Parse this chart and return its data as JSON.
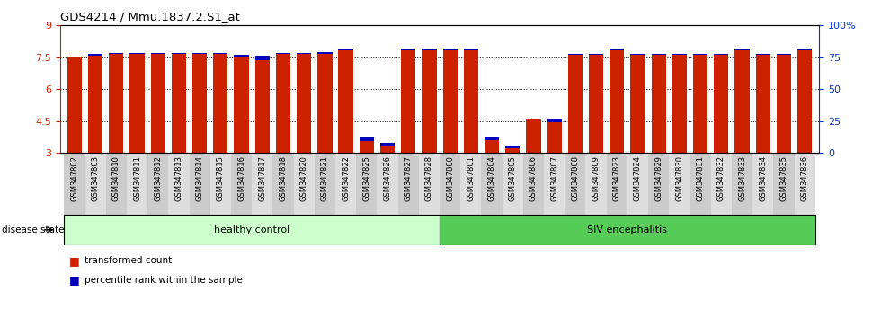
{
  "title": "GDS4214 / Mmu.1837.2.S1_at",
  "samples": [
    "GSM347802",
    "GSM347803",
    "GSM347810",
    "GSM347811",
    "GSM347812",
    "GSM347813",
    "GSM347814",
    "GSM347815",
    "GSM347816",
    "GSM347817",
    "GSM347818",
    "GSM347820",
    "GSM347821",
    "GSM347822",
    "GSM347825",
    "GSM347826",
    "GSM347827",
    "GSM347828",
    "GSM347800",
    "GSM347801",
    "GSM347804",
    "GSM347805",
    "GSM347806",
    "GSM347807",
    "GSM347808",
    "GSM347809",
    "GSM347823",
    "GSM347824",
    "GSM347829",
    "GSM347830",
    "GSM347831",
    "GSM347832",
    "GSM347833",
    "GSM347834",
    "GSM347835",
    "GSM347836"
  ],
  "red_values": [
    7.47,
    7.58,
    7.67,
    7.67,
    7.67,
    7.67,
    7.67,
    7.67,
    7.47,
    7.38,
    7.67,
    7.67,
    7.67,
    7.82,
    3.55,
    3.3,
    7.82,
    7.82,
    7.82,
    7.82,
    3.6,
    3.2,
    4.55,
    4.45,
    7.6,
    7.6,
    7.82,
    7.6,
    7.6,
    7.6,
    7.6,
    7.6,
    7.82,
    7.6,
    7.6,
    7.82
  ],
  "blue_values": [
    7.55,
    7.65,
    7.72,
    7.72,
    7.72,
    7.72,
    7.72,
    7.72,
    7.6,
    7.58,
    7.72,
    7.72,
    7.75,
    7.88,
    3.72,
    3.45,
    7.9,
    7.9,
    7.9,
    7.9,
    3.72,
    3.3,
    4.62,
    4.55,
    7.65,
    7.65,
    7.9,
    7.65,
    7.65,
    7.65,
    7.65,
    7.65,
    7.9,
    7.65,
    7.65,
    7.9
  ],
  "ylim_min": 3.0,
  "ylim_max": 9.0,
  "yticks_left": [
    3.0,
    4.5,
    6.0,
    7.5,
    9.0
  ],
  "ytick_labels_left": [
    "3",
    "4.5",
    "6",
    "7.5",
    "9"
  ],
  "ytick_labels_right": [
    "0",
    "25",
    "50",
    "75",
    "100%"
  ],
  "left_tick_color": "#cc2200",
  "right_tick_color": "#0033cc",
  "group1_label": "healthy control",
  "group2_label": "SIV encephalitis",
  "group1_count": 18,
  "group_color1": "#ccffcc",
  "group_color2": "#55cc55",
  "bar_color_red": "#cc2200",
  "bar_color_blue": "#0000bb",
  "legend_red": "transformed count",
  "legend_blue": "percentile rank within the sample",
  "bg_color": "#ffffff",
  "label_bg_even": "#cccccc",
  "label_bg_odd": "#dddddd"
}
